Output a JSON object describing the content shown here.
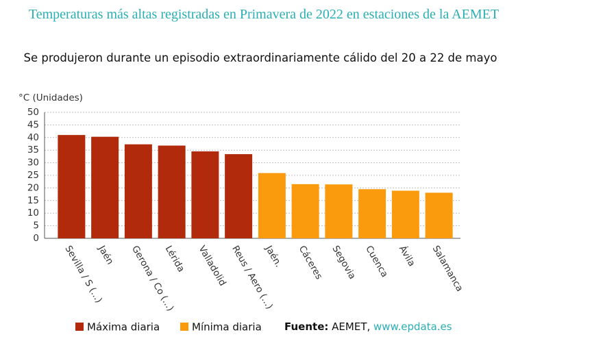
{
  "chart_data": {
    "type": "bar",
    "title": "Temperaturas más altas registradas en Primavera de 2022 en estaciones de la AEMET",
    "subtitle": "Se produjeron durante un episodio extraordinariamente cálido del 20 a 22 de mayo",
    "y_label": "°C (Unidades)",
    "categories": [
      "Sevilla / S (...)",
      "Jaén",
      "Gerona / Co (...)",
      "Lérida",
      "Valladolid",
      "Reus / Aero (...)",
      "Jaén.",
      "Cáceres",
      "Segovia",
      "Cuenca",
      "Ávila",
      "Salamanca"
    ],
    "series": [
      {
        "name": "Máxima diaria",
        "color": "#b22a0c",
        "values": [
          41,
          40.3,
          37.3,
          36.8,
          34.5,
          33.4,
          null,
          null,
          null,
          null,
          null,
          null
        ]
      },
      {
        "name": "Mínima diaria",
        "color": "#f99b0c",
        "values": [
          null,
          null,
          null,
          null,
          null,
          null,
          25.9,
          21.5,
          21.4,
          19.5,
          18.9,
          18.1
        ]
      }
    ],
    "ylim": [
      0,
      50
    ],
    "yticks": [
      0,
      5,
      10,
      15,
      20,
      25,
      30,
      35,
      40,
      45,
      50
    ],
    "grid": true,
    "source": {
      "label": "Fuente:",
      "text": "AEMET,",
      "link": "www.epdata.es"
    }
  }
}
